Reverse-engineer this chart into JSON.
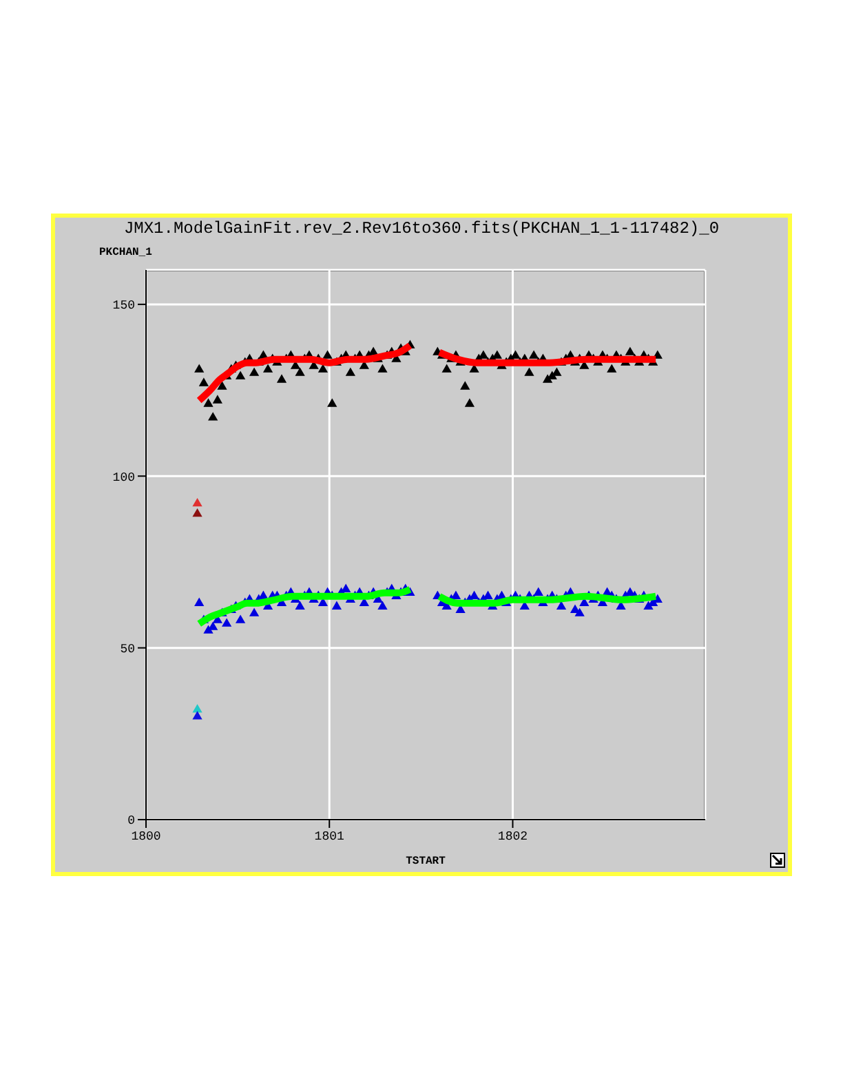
{
  "chart_data": {
    "type": "scatter",
    "title": "JMX1.ModelGainFit.rev_2.Rev16to360.fits(PKCHAN_1_1-117482)_0",
    "xlabel": "TSTART",
    "ylabel": "PKCHAN_1",
    "xlim": [
      1800,
      1803.05
    ],
    "xticks": [
      1800,
      1801,
      1802
    ],
    "ylim": [
      0,
      160
    ],
    "yticks": [
      0,
      50,
      100,
      150
    ],
    "grid": true,
    "series": [
      {
        "marker": "triangle",
        "color": "#000000",
        "x": [
          1800.29,
          1800.315,
          1800.34,
          1800.365,
          1800.39,
          1800.415,
          1800.44,
          1800.465,
          1800.49,
          1800.515,
          1800.54,
          1800.565,
          1800.59,
          1800.615,
          1800.64,
          1800.665,
          1800.69,
          1800.715,
          1800.74,
          1800.765,
          1800.79,
          1800.815,
          1800.84,
          1800.865,
          1800.89,
          1800.915,
          1800.94,
          1800.965,
          1800.99,
          1801.015,
          1801.04,
          1801.065,
          1801.09,
          1801.115,
          1801.14,
          1801.165,
          1801.19,
          1801.215,
          1801.24,
          1801.265,
          1801.29,
          1801.315,
          1801.34,
          1801.365,
          1801.39,
          1801.415,
          1801.44,
          1801.59,
          1801.615,
          1801.64,
          1801.665,
          1801.69,
          1801.715,
          1801.74,
          1801.765,
          1801.79,
          1801.815,
          1801.84,
          1801.865,
          1801.89,
          1801.915,
          1801.94,
          1801.965,
          1801.99,
          1802.015,
          1802.04,
          1802.065,
          1802.09,
          1802.115,
          1802.14,
          1802.165,
          1802.19,
          1802.215,
          1802.24,
          1802.265,
          1802.29,
          1802.315,
          1802.34,
          1802.365,
          1802.39,
          1802.415,
          1802.44,
          1802.465,
          1802.49,
          1802.515,
          1802.54,
          1802.565,
          1802.59,
          1802.615,
          1802.64,
          1802.665,
          1802.69,
          1802.715,
          1802.74,
          1802.765,
          1802.79
        ],
        "values": [
          131,
          127,
          121,
          117,
          122,
          126,
          129,
          131,
          132,
          129,
          133,
          134,
          130,
          133,
          135,
          131,
          134,
          133,
          128,
          134,
          135,
          132,
          130,
          134,
          135,
          132,
          134,
          131,
          135,
          121,
          133,
          134,
          135,
          130,
          134,
          135,
          132,
          135,
          136,
          134,
          131,
          135,
          136,
          134,
          137,
          136,
          138,
          136,
          135,
          131,
          134,
          135,
          133,
          126,
          121,
          131,
          134,
          135,
          133,
          134,
          135,
          132,
          133,
          134,
          135,
          133,
          134,
          130,
          135,
          133,
          134,
          128,
          129,
          130,
          133,
          134,
          135,
          133,
          134,
          132,
          135,
          134,
          133,
          135,
          134,
          131,
          135,
          134,
          133,
          136,
          134,
          133,
          135,
          134,
          133,
          135
        ]
      },
      {
        "marker": "triangle",
        "color": "#0000e0",
        "x": [
          1800.29,
          1800.315,
          1800.34,
          1800.365,
          1800.39,
          1800.415,
          1800.44,
          1800.465,
          1800.49,
          1800.515,
          1800.54,
          1800.565,
          1800.59,
          1800.615,
          1800.64,
          1800.665,
          1800.69,
          1800.715,
          1800.74,
          1800.765,
          1800.79,
          1800.815,
          1800.84,
          1800.865,
          1800.89,
          1800.915,
          1800.94,
          1800.965,
          1800.99,
          1801.015,
          1801.04,
          1801.065,
          1801.09,
          1801.115,
          1801.14,
          1801.165,
          1801.19,
          1801.215,
          1801.24,
          1801.265,
          1801.29,
          1801.315,
          1801.34,
          1801.365,
          1801.39,
          1801.415,
          1801.44,
          1801.59,
          1801.615,
          1801.64,
          1801.665,
          1801.69,
          1801.715,
          1801.74,
          1801.765,
          1801.79,
          1801.815,
          1801.84,
          1801.865,
          1801.89,
          1801.915,
          1801.94,
          1801.965,
          1801.99,
          1802.015,
          1802.04,
          1802.065,
          1802.09,
          1802.115,
          1802.14,
          1802.165,
          1802.19,
          1802.215,
          1802.24,
          1802.265,
          1802.29,
          1802.315,
          1802.34,
          1802.365,
          1802.39,
          1802.415,
          1802.44,
          1802.465,
          1802.49,
          1802.515,
          1802.54,
          1802.565,
          1802.59,
          1802.615,
          1802.64,
          1802.665,
          1802.69,
          1802.715,
          1802.74,
          1802.765,
          1802.79
        ],
        "values": [
          63,
          58,
          55,
          56,
          58,
          60,
          57,
          61,
          62,
          58,
          63,
          64,
          60,
          64,
          65,
          62,
          65,
          65,
          63,
          65,
          66,
          64,
          62,
          65,
          66,
          64,
          65,
          63,
          66,
          65,
          62,
          66,
          67,
          64,
          65,
          66,
          63,
          65,
          66,
          64,
          62,
          66,
          67,
          65,
          66,
          67,
          66,
          65,
          63,
          62,
          64,
          65,
          61,
          63,
          64,
          65,
          63,
          64,
          65,
          62,
          64,
          65,
          63,
          64,
          65,
          64,
          62,
          65,
          64,
          66,
          63,
          64,
          65,
          64,
          62,
          65,
          66,
          61,
          60,
          63,
          65,
          64,
          65,
          63,
          66,
          65,
          64,
          62,
          65,
          66,
          65,
          64,
          65,
          62,
          63,
          64
        ]
      },
      {
        "marker": "triangle",
        "colors": [
          "#e03030",
          "#8b1010",
          "#20c8c8",
          "#1010e0"
        ],
        "x": [
          1800.28,
          1800.28,
          1800.28,
          1800.28
        ],
        "values": [
          92,
          89,
          32,
          30
        ]
      },
      {
        "type": "line",
        "color": "#ff0000",
        "x": [
          1800.29,
          1800.35,
          1800.4,
          1800.45,
          1800.5,
          1800.55,
          1800.6,
          1800.7,
          1800.8,
          1800.9,
          1801.0,
          1801.1,
          1801.2,
          1801.3,
          1801.38,
          1801.44
        ],
        "values": [
          122,
          125,
          128,
          130,
          132,
          133,
          133,
          134,
          134,
          134,
          133,
          134,
          134,
          135,
          136,
          138
        ]
      },
      {
        "type": "line",
        "color": "#ff0000",
        "x": [
          1801.6,
          1801.7,
          1801.8,
          1801.9,
          1802.0,
          1802.2,
          1802.4,
          1802.6,
          1802.78
        ],
        "values": [
          136,
          134,
          133,
          133,
          133,
          133,
          134,
          134,
          134
        ]
      },
      {
        "type": "line",
        "color": "#00ff00",
        "x": [
          1800.29,
          1800.35,
          1800.4,
          1800.45,
          1800.5,
          1800.55,
          1800.6,
          1800.7,
          1800.8,
          1800.9,
          1801.0,
          1801.1,
          1801.2,
          1801.3,
          1801.38,
          1801.44
        ],
        "values": [
          57,
          59,
          60,
          61,
          62,
          63,
          63,
          64,
          65,
          65,
          65,
          65,
          65,
          66,
          66,
          67
        ]
      },
      {
        "type": "line",
        "color": "#00ff00",
        "x": [
          1801.6,
          1801.7,
          1801.8,
          1801.9,
          1802.0,
          1802.2,
          1802.4,
          1802.6,
          1802.78
        ],
        "values": [
          65,
          63,
          63,
          63,
          64,
          64,
          65,
          64,
          65
        ]
      }
    ]
  }
}
